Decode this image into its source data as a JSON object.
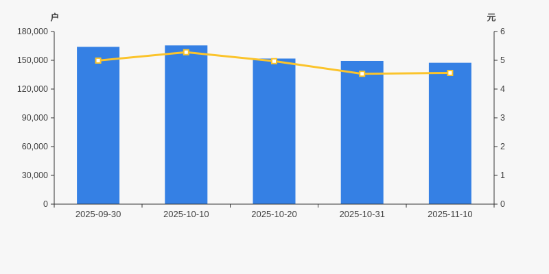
{
  "chart_data": {
    "type": "combo-bar-line",
    "categories": [
      "2025-09-30",
      "2025-10-10",
      "2025-10-20",
      "2025-10-31",
      "2025-11-10"
    ],
    "series": [
      {
        "name": "bar-series-left-axis",
        "type": "bar",
        "axis": "left",
        "values": [
          164000,
          165500,
          151800,
          149300,
          147400
        ],
        "color": "#3580e4"
      },
      {
        "name": "line-series-right-axis",
        "type": "line",
        "axis": "right",
        "values": [
          4.99,
          5.28,
          4.97,
          4.53,
          4.56
        ],
        "color": "#fbc42c",
        "marker": "square",
        "marker_fill": "#ffffff"
      }
    ],
    "left_axis": {
      "title": "户",
      "min": 0,
      "max": 180000,
      "tick_interval": 30000,
      "tick_labels": [
        "0",
        "30,000",
        "60,000",
        "90,000",
        "120,000",
        "150,000",
        "180,000"
      ]
    },
    "right_axis": {
      "title": "元",
      "min": 0,
      "max": 6,
      "tick_interval": 1,
      "tick_labels": [
        "0",
        "1",
        "2",
        "3",
        "4",
        "5",
        "6"
      ]
    },
    "x_axis": {
      "labels": [
        "2025-09-30",
        "2025-10-10",
        "2025-10-20",
        "2025-10-31",
        "2025-11-10"
      ]
    },
    "grid": false,
    "legend": "none",
    "background": "#f7f7f7",
    "axis_color": "#333333",
    "text_color": "#404040"
  }
}
